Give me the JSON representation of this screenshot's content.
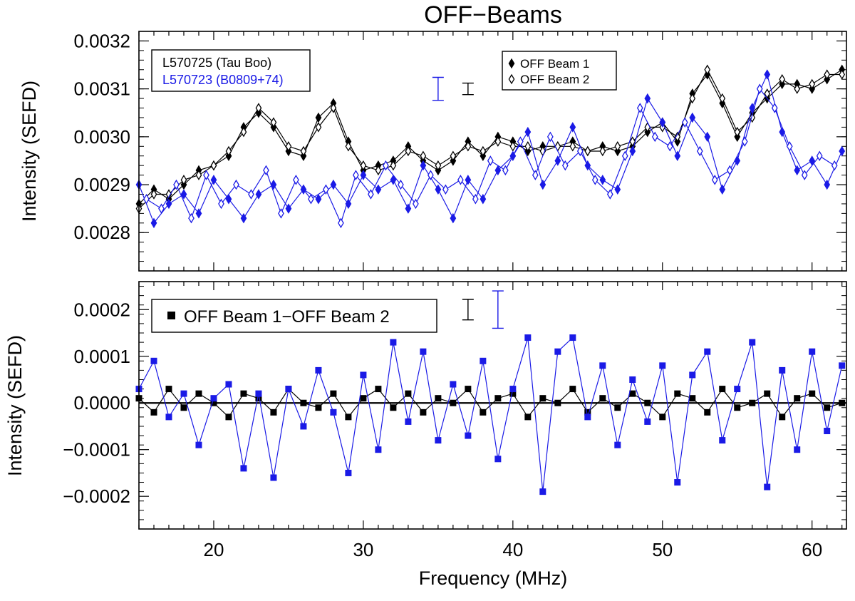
{
  "figure": {
    "title": "OFF−Beams",
    "xlabel": "Frequency (MHz)",
    "colors": {
      "black_series": "#000000",
      "blue_series": "#1a1ae6"
    }
  },
  "chart_data": [
    {
      "type": "line",
      "panel": "top",
      "ylabel": "Intensity (SEFD)",
      "xlim": [
        15,
        62.3
      ],
      "ylim": [
        0.00272,
        0.00322
      ],
      "xticks": [
        "20",
        "30",
        "40",
        "50",
        "60"
      ],
      "yticks": [
        "0.0028",
        "0.0029",
        "0.0030",
        "0.0031",
        "0.0032"
      ],
      "observation_labels": [
        "L570725 (Tau Boo)",
        "L570723 (B0809+74)"
      ],
      "legend": {
        "position": "top-right",
        "entries": [
          "OFF Beam 1",
          "OFF Beam 2"
        ]
      },
      "series": [
        {
          "observation": "L570725 (Tau Boo)",
          "beam": "OFF Beam 1",
          "color": "#000000",
          "x": [
            15,
            16,
            17,
            18,
            19,
            20,
            21,
            22,
            23,
            24,
            25,
            26,
            27,
            28,
            29,
            30,
            31,
            32,
            33,
            34,
            35,
            36,
            37,
            38,
            39,
            40,
            41,
            42,
            43,
            44,
            45,
            46,
            47,
            48,
            49,
            50,
            51,
            52,
            53,
            54,
            55,
            56,
            57,
            58,
            59,
            60,
            61,
            62
          ],
          "y": [
            0.00286,
            0.00289,
            0.00287,
            0.0029,
            0.00293,
            0.00294,
            0.00296,
            0.00302,
            0.00305,
            0.00302,
            0.00297,
            0.00296,
            0.00304,
            0.00307,
            0.00299,
            0.00293,
            0.00294,
            0.00295,
            0.00298,
            0.00295,
            0.00293,
            0.00295,
            0.00299,
            0.00296,
            0.003,
            0.00299,
            0.00297,
            0.00298,
            0.00298,
            0.00299,
            0.00297,
            0.00298,
            0.00297,
            0.00298,
            0.00301,
            0.00303,
            0.00299,
            0.00309,
            0.00313,
            0.00307,
            0.003,
            0.00305,
            0.00308,
            0.00311,
            0.00311,
            0.0031,
            0.00312,
            0.00314
          ]
        },
        {
          "observation": "L570725 (Tau Boo)",
          "beam": "OFF Beam 2",
          "color": "#000000",
          "x": [
            15,
            16,
            17,
            18,
            19,
            20,
            21,
            22,
            23,
            24,
            25,
            26,
            27,
            28,
            29,
            30,
            31,
            32,
            33,
            34,
            35,
            36,
            37,
            38,
            39,
            40,
            41,
            42,
            43,
            44,
            45,
            46,
            47,
            48,
            49,
            50,
            51,
            52,
            53,
            54,
            55,
            56,
            57,
            58,
            59,
            60,
            61,
            62
          ],
          "y": [
            0.00285,
            0.00288,
            0.00288,
            0.00291,
            0.00292,
            0.00294,
            0.00297,
            0.00301,
            0.00306,
            0.00303,
            0.00298,
            0.00297,
            0.00302,
            0.00306,
            0.00298,
            0.00294,
            0.00293,
            0.00294,
            0.00297,
            0.00296,
            0.00294,
            0.00296,
            0.00298,
            0.00297,
            0.00299,
            0.00298,
            0.00298,
            0.00297,
            0.00298,
            0.00298,
            0.00297,
            0.00297,
            0.00298,
            0.00299,
            0.00302,
            0.00302,
            0.003,
            0.00308,
            0.00314,
            0.00308,
            0.00301,
            0.00304,
            0.00309,
            0.00312,
            0.0031,
            0.00311,
            0.00313,
            0.00313
          ]
        },
        {
          "observation": "L570723 (B0809+74)",
          "beam": "OFF Beam 1",
          "color": "#1a1ae6",
          "x": [
            15,
            16,
            17,
            18,
            19,
            20,
            21,
            22,
            23,
            24,
            25,
            26,
            27,
            28,
            29,
            30,
            31,
            32,
            33,
            34,
            35,
            36,
            37,
            38,
            39,
            40,
            41,
            42,
            43,
            44,
            45,
            46,
            47,
            48,
            49,
            50,
            51,
            52,
            53,
            54,
            55,
            56,
            57,
            58,
            59,
            60,
            61,
            62
          ],
          "y": [
            0.0029,
            0.00282,
            0.00286,
            0.00288,
            0.00284,
            0.00291,
            0.00287,
            0.00283,
            0.00288,
            0.0029,
            0.00285,
            0.00289,
            0.00287,
            0.0029,
            0.00286,
            0.00292,
            0.00289,
            0.00291,
            0.00285,
            0.00294,
            0.00289,
            0.00283,
            0.00291,
            0.00287,
            0.00293,
            0.00296,
            0.00301,
            0.0029,
            0.00295,
            0.00302,
            0.00294,
            0.00291,
            0.00289,
            0.00297,
            0.00308,
            0.00303,
            0.00296,
            0.00304,
            0.003,
            0.00289,
            0.00295,
            0.00306,
            0.00313,
            0.00301,
            0.00293,
            0.00295,
            0.0029,
            0.00297
          ]
        },
        {
          "observation": "L570723 (B0809+74)",
          "beam": "OFF Beam 2",
          "color": "#1a1ae6",
          "x": [
            15.5,
            16.5,
            17.5,
            18.5,
            19.5,
            20.5,
            21.5,
            22.5,
            23.5,
            24.5,
            25.5,
            26.5,
            27.5,
            28.5,
            29.5,
            30.5,
            31.5,
            32.5,
            33.5,
            34.5,
            35.5,
            36.5,
            37.5,
            38.5,
            39.5,
            40.5,
            41.5,
            42.5,
            43.5,
            44.5,
            45.5,
            46.5,
            47.5,
            48.5,
            49.5,
            50.5,
            51.5,
            52.5,
            53.5,
            54.5,
            55.5,
            56.5,
            57.5,
            58.5,
            59.5,
            60.5,
            61.5
          ],
          "y": [
            0.00287,
            0.00285,
            0.0029,
            0.00283,
            0.00292,
            0.00286,
            0.0029,
            0.00288,
            0.00293,
            0.00284,
            0.00291,
            0.00287,
            0.00289,
            0.00282,
            0.00292,
            0.00288,
            0.00294,
            0.0029,
            0.00286,
            0.00292,
            0.00289,
            0.00291,
            0.00287,
            0.00295,
            0.00293,
            0.00299,
            0.00292,
            0.003,
            0.00294,
            0.00297,
            0.00291,
            0.00288,
            0.00296,
            0.00306,
            0.003,
            0.00298,
            0.00303,
            0.00297,
            0.00291,
            0.00293,
            0.00299,
            0.0031,
            0.00306,
            0.00298,
            0.00292,
            0.00296,
            0.00294
          ]
        }
      ],
      "error_bars": [
        {
          "color": "#1a1ae6",
          "x": 35.0,
          "y": 0.0031,
          "half_height": 2.4e-05
        },
        {
          "color": "#000000",
          "x": 37.0,
          "y": 0.0031,
          "half_height": 1.2e-05
        }
      ]
    },
    {
      "type": "line",
      "panel": "bottom",
      "ylabel": "Intensity (SEFD)",
      "xlim": [
        15,
        62.3
      ],
      "ylim": [
        -0.00027,
        0.00026
      ],
      "xticks": [
        "20",
        "30",
        "40",
        "50",
        "60"
      ],
      "yticks": [
        "−0.0002",
        "−0.0001",
        "0.0000",
        "0.0001",
        "0.0002"
      ],
      "legend": {
        "position": "top-left",
        "entries": [
          "OFF Beam 1−OFF Beam 2"
        ]
      },
      "zero_line": true,
      "series": [
        {
          "observation": "L570725 (Tau Boo)",
          "label": "OFF Beam 1−OFF Beam 2",
          "color": "#000000",
          "x": [
            15,
            16,
            17,
            18,
            19,
            20,
            21,
            22,
            23,
            24,
            25,
            26,
            27,
            28,
            29,
            30,
            31,
            32,
            33,
            34,
            35,
            36,
            37,
            38,
            39,
            40,
            41,
            42,
            43,
            44,
            45,
            46,
            47,
            48,
            49,
            50,
            51,
            52,
            53,
            54,
            55,
            56,
            57,
            58,
            59,
            60,
            61,
            62
          ],
          "y": [
            1e-05,
            -2e-05,
            3e-05,
            -1e-05,
            2e-05,
            0.0,
            -3e-05,
            2e-05,
            1e-05,
            -2e-05,
            3e-05,
            0.0,
            -1e-05,
            2e-05,
            -3e-05,
            1e-05,
            3e-05,
            -1e-05,
            2e-05,
            -2e-05,
            1e-05,
            0.0,
            3e-05,
            -2e-05,
            1e-05,
            2e-05,
            -3e-05,
            1e-05,
            0.0,
            3e-05,
            -2e-05,
            1e-05,
            -1e-05,
            2e-05,
            0.0,
            -3e-05,
            2e-05,
            1e-05,
            -2e-05,
            3e-05,
            -1e-05,
            0.0,
            2e-05,
            -3e-05,
            1e-05,
            2e-05,
            -1e-05,
            0.0
          ]
        },
        {
          "observation": "L570723 (B0809+74)",
          "label": "OFF Beam 1−OFF Beam 2",
          "color": "#1a1ae6",
          "x": [
            15,
            16,
            17,
            18,
            19,
            20,
            21,
            22,
            23,
            24,
            25,
            26,
            27,
            28,
            29,
            30,
            31,
            32,
            33,
            34,
            35,
            36,
            37,
            38,
            39,
            40,
            41,
            42,
            43,
            44,
            45,
            46,
            47,
            48,
            49,
            50,
            51,
            52,
            53,
            54,
            55,
            56,
            57,
            58,
            59,
            60,
            61,
            62
          ],
          "y": [
            3e-05,
            9e-05,
            -3e-05,
            2e-05,
            -9e-05,
            1e-05,
            4e-05,
            -0.00014,
            2e-05,
            -0.00016,
            3e-05,
            -5e-05,
            7e-05,
            -2e-05,
            -0.00015,
            6e-05,
            -0.0001,
            0.00013,
            -4e-05,
            0.00011,
            -8e-05,
            4e-05,
            -7e-05,
            9e-05,
            -0.00012,
            3e-05,
            0.00014,
            -0.00019,
            0.00011,
            0.00014,
            -3e-05,
            8e-05,
            -9e-05,
            5e-05,
            -4e-05,
            8e-05,
            -0.00017,
            6e-05,
            0.00011,
            -8e-05,
            3e-05,
            0.00013,
            -0.00018,
            7e-05,
            -0.0001,
            0.00011,
            -6e-05,
            8e-05
          ]
        }
      ],
      "error_bars": [
        {
          "color": "#000000",
          "x": 37.0,
          "y": 0.0002,
          "half_height": 2.2e-05
        },
        {
          "color": "#1a1ae6",
          "x": 39.0,
          "y": 0.0002,
          "half_height": 4e-05
        }
      ]
    }
  ]
}
